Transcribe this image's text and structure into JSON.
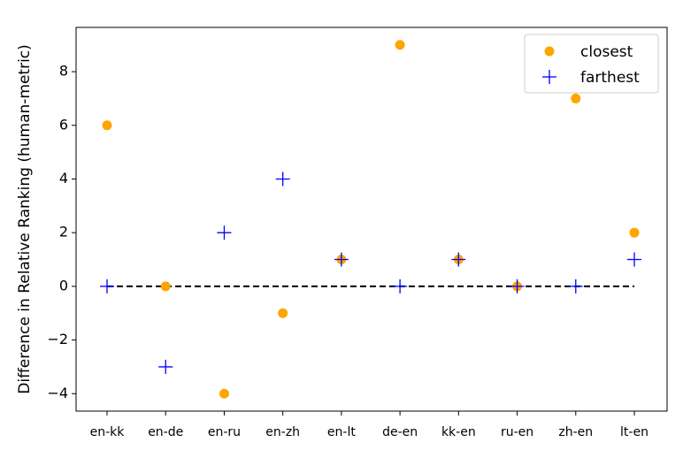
{
  "chart_data": {
    "type": "scatter",
    "categories": [
      "en-kk",
      "en-de",
      "en-ru",
      "en-zh",
      "en-lt",
      "de-en",
      "kk-en",
      "ru-en",
      "zh-en",
      "lt-en"
    ],
    "series": [
      {
        "name": "closest",
        "marker": "circle",
        "color": "#ffa500",
        "values": [
          6,
          0,
          -4,
          -1,
          1,
          9,
          1,
          0,
          7,
          2
        ]
      },
      {
        "name": "farthest",
        "marker": "plus",
        "color": "#0000ff",
        "values": [
          0,
          -3,
          2,
          4,
          1,
          0,
          1,
          0,
          0,
          1
        ]
      }
    ],
    "reference_line": {
      "y": 0,
      "style": "dashed",
      "color": "#000000"
    },
    "ylabel": "Difference in Relative Ranking (human-metric)",
    "xlabel": "",
    "ylim": [
      -4.65,
      9.65
    ],
    "yticks": [
      -4,
      -2,
      0,
      2,
      4,
      6,
      8
    ],
    "legend_position": "top-right",
    "grid": false
  }
}
